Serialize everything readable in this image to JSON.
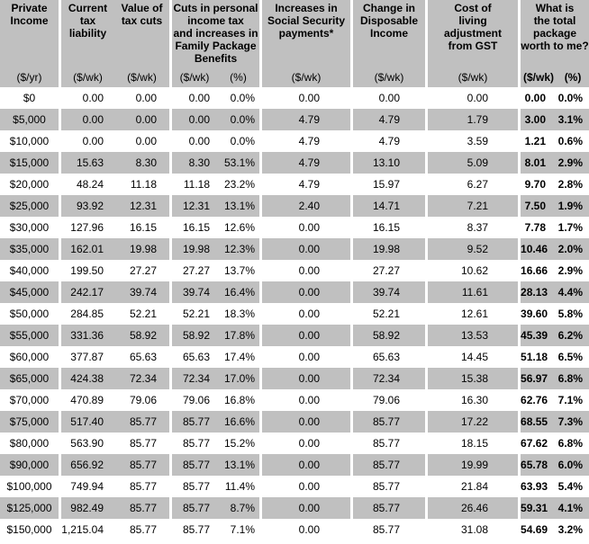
{
  "colors": {
    "header_bg": "#C0C0C0",
    "stripe_row_bg": "#C0C0C0",
    "plain_row_bg": "#FFFFFF",
    "separator": "#FFFFFF",
    "text": "#000000"
  },
  "chart_data": {
    "type": "table",
    "columns": [
      {
        "key": "private-income",
        "label": "Private\nIncome",
        "units": [
          "($/yr)"
        ],
        "span": 1,
        "bold": false
      },
      {
        "key": "current-tax-liability",
        "label": "Current\ntax\nliability",
        "units": [
          "($/wk)"
        ],
        "span": 1,
        "bold": false
      },
      {
        "key": "value-of-tax-cuts",
        "label": "Value of\ntax cuts",
        "units": [
          "($/wk)"
        ],
        "span": 1,
        "bold": false
      },
      {
        "key": "cuts-income-tax-family-package",
        "label": "Cuts in personal\nincome tax\nand increases in\nFamily Package\nBenefits",
        "units": [
          "($/wk)",
          "(%)"
        ],
        "span": 2,
        "bold": false
      },
      {
        "key": "increases-social-security-payments",
        "label": "Increases in\nSocial Security\npayments*",
        "units": [
          "($/wk)"
        ],
        "span": 1,
        "bold": false
      },
      {
        "key": "change-in-disposable-income",
        "label": "Change in\nDisposable\nIncome",
        "units": [
          "($/wk)"
        ],
        "span": 1,
        "bold": false
      },
      {
        "key": "cost-of-living-adjustment-gst",
        "label": "Cost of\nliving\nadjustment\nfrom GST",
        "units": [
          "($/wk)"
        ],
        "span": 1,
        "bold": false
      },
      {
        "key": "total-package-worth",
        "label": "What is\nthe total\npackage\nworth to me?",
        "units": [
          "($/wk)",
          "(%)"
        ],
        "span": 2,
        "bold": true
      }
    ],
    "rows": [
      [
        "$0",
        "0.00",
        "0.00",
        "0.00",
        "0.0%",
        "0.00",
        "0.00",
        "0.00",
        "0.00",
        "0.0%"
      ],
      [
        "$5,000",
        "0.00",
        "0.00",
        "0.00",
        "0.0%",
        "4.79",
        "4.79",
        "1.79",
        "3.00",
        "3.1%"
      ],
      [
        "$10,000",
        "0.00",
        "0.00",
        "0.00",
        "0.0%",
        "4.79",
        "4.79",
        "3.59",
        "1.21",
        "0.6%"
      ],
      [
        "$15,000",
        "15.63",
        "8.30",
        "8.30",
        "53.1%",
        "4.79",
        "13.10",
        "5.09",
        "8.01",
        "2.9%"
      ],
      [
        "$20,000",
        "48.24",
        "11.18",
        "11.18",
        "23.2%",
        "4.79",
        "15.97",
        "6.27",
        "9.70",
        "2.8%"
      ],
      [
        "$25,000",
        "93.92",
        "12.31",
        "12.31",
        "13.1%",
        "2.40",
        "14.71",
        "7.21",
        "7.50",
        "1.9%"
      ],
      [
        "$30,000",
        "127.96",
        "16.15",
        "16.15",
        "12.6%",
        "0.00",
        "16.15",
        "8.37",
        "7.78",
        "1.7%"
      ],
      [
        "$35,000",
        "162.01",
        "19.98",
        "19.98",
        "12.3%",
        "0.00",
        "19.98",
        "9.52",
        "10.46",
        "2.0%"
      ],
      [
        "$40,000",
        "199.50",
        "27.27",
        "27.27",
        "13.7%",
        "0.00",
        "27.27",
        "10.62",
        "16.66",
        "2.9%"
      ],
      [
        "$45,000",
        "242.17",
        "39.74",
        "39.74",
        "16.4%",
        "0.00",
        "39.74",
        "11.61",
        "28.13",
        "4.4%"
      ],
      [
        "$50,000",
        "284.85",
        "52.21",
        "52.21",
        "18.3%",
        "0.00",
        "52.21",
        "12.61",
        "39.60",
        "5.8%"
      ],
      [
        "$55,000",
        "331.36",
        "58.92",
        "58.92",
        "17.8%",
        "0.00",
        "58.92",
        "13.53",
        "45.39",
        "6.2%"
      ],
      [
        "$60,000",
        "377.87",
        "65.63",
        "65.63",
        "17.4%",
        "0.00",
        "65.63",
        "14.45",
        "51.18",
        "6.5%"
      ],
      [
        "$65,000",
        "424.38",
        "72.34",
        "72.34",
        "17.0%",
        "0.00",
        "72.34",
        "15.38",
        "56.97",
        "6.8%"
      ],
      [
        "$70,000",
        "470.89",
        "79.06",
        "79.06",
        "16.8%",
        "0.00",
        "79.06",
        "16.30",
        "62.76",
        "7.1%"
      ],
      [
        "$75,000",
        "517.40",
        "85.77",
        "85.77",
        "16.6%",
        "0.00",
        "85.77",
        "17.22",
        "68.55",
        "7.3%"
      ],
      [
        "$80,000",
        "563.90",
        "85.77",
        "85.77",
        "15.2%",
        "0.00",
        "85.77",
        "18.15",
        "67.62",
        "6.8%"
      ],
      [
        "$90,000",
        "656.92",
        "85.77",
        "85.77",
        "13.1%",
        "0.00",
        "85.77",
        "19.99",
        "65.78",
        "6.0%"
      ],
      [
        "$100,000",
        "749.94",
        "85.77",
        "85.77",
        "11.4%",
        "0.00",
        "85.77",
        "21.84",
        "63.93",
        "5.4%"
      ],
      [
        "$125,000",
        "982.49",
        "85.77",
        "85.77",
        "8.7%",
        "0.00",
        "85.77",
        "26.46",
        "59.31",
        "4.1%"
      ],
      [
        "$150,000",
        "1,215.04",
        "85.77",
        "85.77",
        "7.1%",
        "0.00",
        "85.77",
        "31.08",
        "54.69",
        "3.2%"
      ]
    ]
  }
}
